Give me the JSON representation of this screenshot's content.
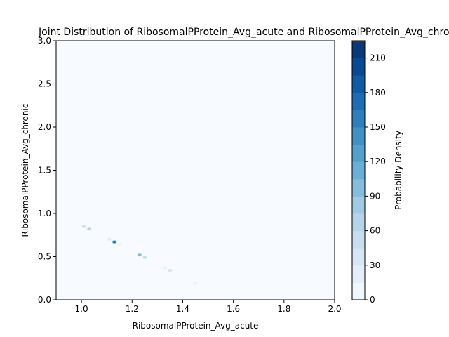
{
  "chart_data": {
    "type": "heatmap",
    "title": "Joint Distribution of RibosomalPProtein_Avg_acute and RibosomalPProtein_Avg_chronic",
    "xlabel": "RibosomalPProtein_Avg_acute",
    "ylabel": "RibosomalPProtein_Avg_chronic",
    "xlim": [
      0.9,
      2.0
    ],
    "ylim": [
      0.0,
      3.0
    ],
    "xticks": [
      "1.0",
      "1.2",
      "1.4",
      "1.6",
      "1.8",
      "2.0"
    ],
    "xtick_values": [
      1.0,
      1.2,
      1.4,
      1.6,
      1.8,
      2.0
    ],
    "yticks": [
      "0.0",
      "0.5",
      "1.0",
      "1.5",
      "2.0",
      "2.5",
      "3.0"
    ],
    "ytick_values": [
      0.0,
      0.5,
      1.0,
      1.5,
      2.0,
      2.5,
      3.0
    ],
    "colorbar": {
      "label": "Probability Density",
      "min": 0,
      "max": 225,
      "levels": 15,
      "ticks": [
        "0",
        "30",
        "60",
        "90",
        "120",
        "150",
        "180",
        "210"
      ],
      "tick_values": [
        0,
        30,
        60,
        90,
        120,
        150,
        180,
        210
      ],
      "colormap": "Blues"
    },
    "grid": false,
    "density_peaks": [
      {
        "x": 1.01,
        "y": 0.85,
        "density": 60
      },
      {
        "x": 1.03,
        "y": 0.82,
        "density": 75
      },
      {
        "x": 1.11,
        "y": 0.7,
        "density": 30
      },
      {
        "x": 1.13,
        "y": 0.67,
        "density": 220
      },
      {
        "x": 1.15,
        "y": 0.64,
        "density": 20
      },
      {
        "x": 1.23,
        "y": 0.52,
        "density": 120
      },
      {
        "x": 1.25,
        "y": 0.49,
        "density": 70
      },
      {
        "x": 1.33,
        "y": 0.37,
        "density": 20
      },
      {
        "x": 1.35,
        "y": 0.34,
        "density": 55
      },
      {
        "x": 1.45,
        "y": 0.19,
        "density": 18
      }
    ]
  }
}
